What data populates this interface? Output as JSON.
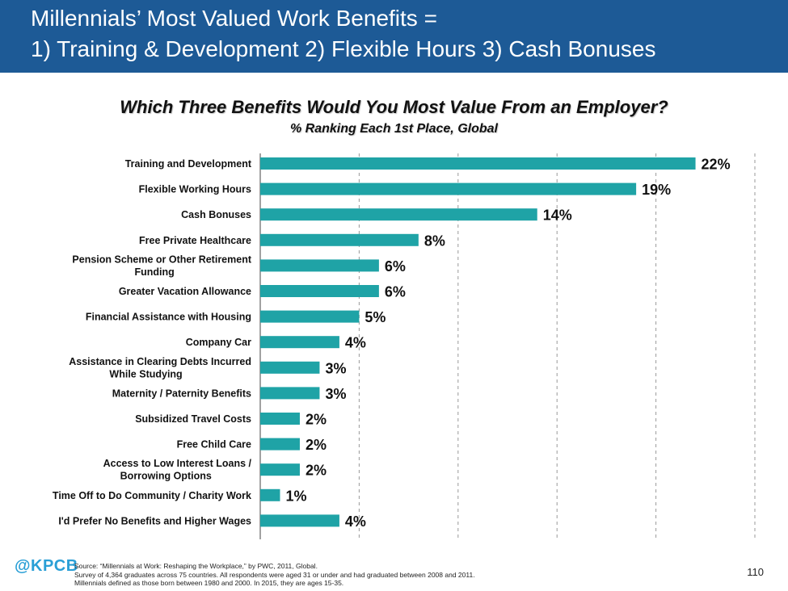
{
  "header": {
    "title_line1": "Millennials’ Most Valued Work Benefits =",
    "title_line2": "1) Training & Development  2) Flexible Hours  3) Cash Bonuses"
  },
  "chart_data": {
    "type": "bar",
    "orientation": "horizontal",
    "title": "Which Three Benefits Would You Most Value From an Employer?",
    "subtitle": "% Ranking Each 1st Place, Global",
    "categories": [
      [
        "Training and Development"
      ],
      [
        "Flexible Working Hours"
      ],
      [
        "Cash Bonuses"
      ],
      [
        "Free Private Healthcare"
      ],
      [
        "Pension Scheme or Other Retirement",
        "Funding"
      ],
      [
        "Greater Vacation Allowance"
      ],
      [
        "Financial Assistance with Housing"
      ],
      [
        "Company Car"
      ],
      [
        "Assistance in Clearing Debts Incurred",
        "While Studying"
      ],
      [
        "Maternity / Paternity Benefits"
      ],
      [
        "Subsidized Travel Costs"
      ],
      [
        "Free Child Care"
      ],
      [
        "Access to Low Interest Loans /",
        "Borrowing Options"
      ],
      [
        "Time Off to Do Community / Charity Work"
      ],
      [
        "I'd Prefer No Benefits and Higher Wages"
      ]
    ],
    "values": [
      22,
      19,
      14,
      8,
      6,
      6,
      5,
      4,
      3,
      3,
      2,
      2,
      2,
      1,
      4
    ],
    "value_labels": [
      "22%",
      "19%",
      "14%",
      "8%",
      "6%",
      "6%",
      "5%",
      "4%",
      "3%",
      "3%",
      "2%",
      "2%",
      "2%",
      "1%",
      "4%"
    ],
    "xlim": [
      0,
      25
    ],
    "gridlines": [
      5,
      10,
      15,
      20,
      25
    ],
    "grid": "vertical dashed",
    "bar_color": "#1fa3a6"
  },
  "footer": {
    "logo": "@KPCB",
    "source_line1": "Source: “Millennials at Work: Reshaping the Workplace,” by PWC, 2011, Global.",
    "source_line2": "Survey of 4,364 graduates across 75 countries. All respondents were aged 31 or under and had graduated between 2008 and 2011.",
    "source_line3": "Millennials defined as those born between 1980 and 2000. In 2015, they are ages 15-35.",
    "page_number": "110"
  }
}
